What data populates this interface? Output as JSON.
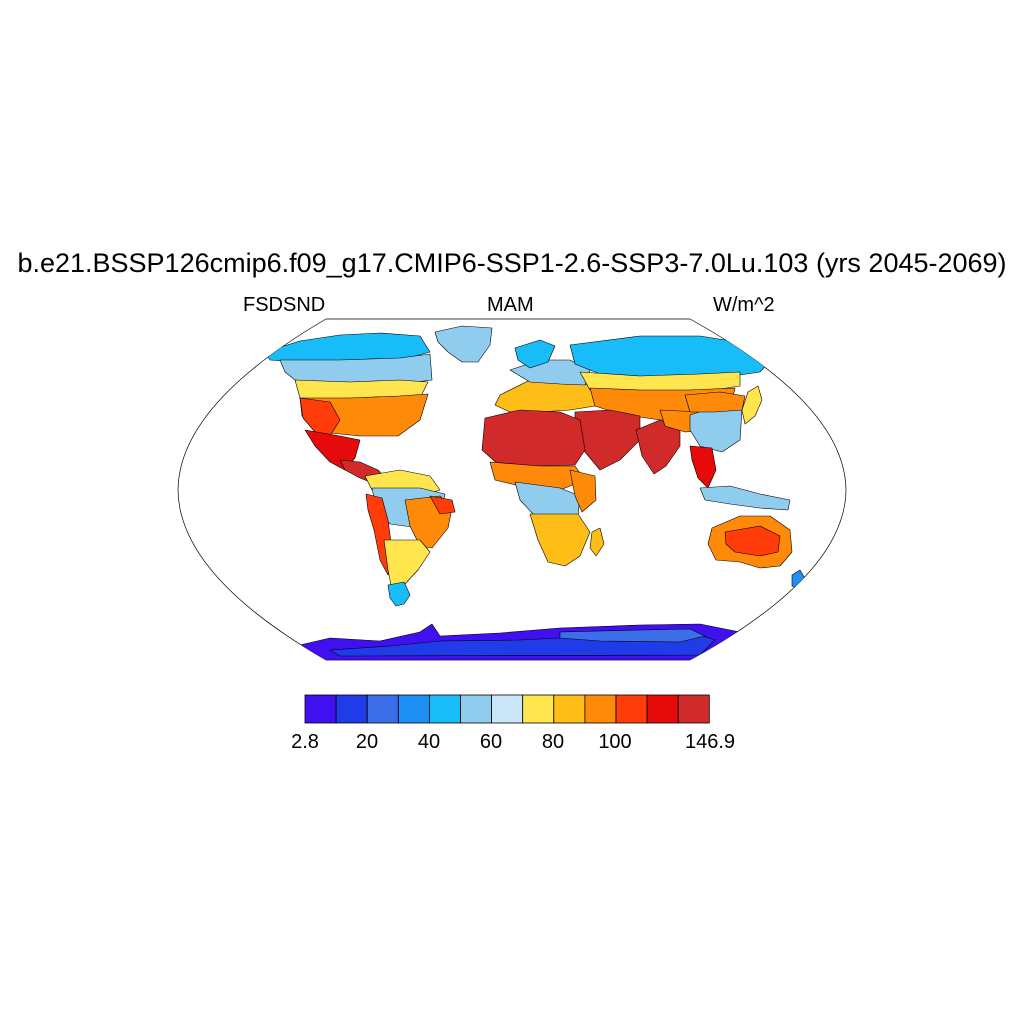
{
  "title": "b.e21.BSSP126cmip6.f09_g17.CMIP6-SSP1-2.6-SSP3-7.0Lu.103 (yrs 2045-2069)",
  "variable": "FSDSND",
  "season": "MAM",
  "units": "W/m^2",
  "colorbar": {
    "colors": [
      "#4010f0",
      "#1f3ce8",
      "#3c6ee8",
      "#1e90f5",
      "#18bcf8",
      "#90ccee",
      "#c8e6f6",
      "#ffe64e",
      "#ffbd18",
      "#ff8a0a",
      "#ff3c0a",
      "#e60a0a",
      "#d12a2a"
    ],
    "labels": [
      "2.8",
      "20",
      "40",
      "60",
      "80",
      "100",
      "146.9"
    ]
  },
  "map": {
    "projection": "Robinson",
    "ocean_color": "#ffffff",
    "regions": [
      {
        "name": "antarctica",
        "level": 0
      },
      {
        "name": "antarctica-interior",
        "level": 1
      },
      {
        "name": "antarctica-plateau",
        "level": 2
      },
      {
        "name": "greenland",
        "level": 5
      },
      {
        "name": "north-america-arctic",
        "level": 4
      },
      {
        "name": "canada",
        "level": 5
      },
      {
        "name": "canada-south",
        "level": 7
      },
      {
        "name": "usa",
        "level": 9
      },
      {
        "name": "usa-southwest",
        "level": 10
      },
      {
        "name": "mexico",
        "level": 11
      },
      {
        "name": "central-america",
        "level": 12
      },
      {
        "name": "south-america-north",
        "level": 7
      },
      {
        "name": "amazon",
        "level": 5
      },
      {
        "name": "brazil-east",
        "level": 9
      },
      {
        "name": "brazil-northeast",
        "level": 10
      },
      {
        "name": "andes",
        "level": 10
      },
      {
        "name": "argentina",
        "level": 7
      },
      {
        "name": "patagonia",
        "level": 4
      },
      {
        "name": "europe",
        "level": 8
      },
      {
        "name": "europe-north",
        "level": 5
      },
      {
        "name": "scandinavia",
        "level": 4
      },
      {
        "name": "siberia",
        "level": 4
      },
      {
        "name": "russia-south",
        "level": 7
      },
      {
        "name": "central-asia",
        "level": 9
      },
      {
        "name": "middle-east",
        "level": 12
      },
      {
        "name": "sahara",
        "level": 12
      },
      {
        "name": "sahel",
        "level": 9
      },
      {
        "name": "central-africa",
        "level": 5
      },
      {
        "name": "east-africa",
        "level": 9
      },
      {
        "name": "southern-africa",
        "level": 8
      },
      {
        "name": "madagascar",
        "level": 8
      },
      {
        "name": "india",
        "level": 12
      },
      {
        "name": "tibet",
        "level": 9
      },
      {
        "name": "china",
        "level": 5
      },
      {
        "name": "china-north",
        "level": 9
      },
      {
        "name": "southeast-asia",
        "level": 11
      },
      {
        "name": "indonesia",
        "level": 5
      },
      {
        "name": "japan",
        "level": 7
      },
      {
        "name": "australia",
        "level": 9
      },
      {
        "name": "australia-interior",
        "level": 10
      },
      {
        "name": "new-zealand",
        "level": 3
      }
    ]
  }
}
